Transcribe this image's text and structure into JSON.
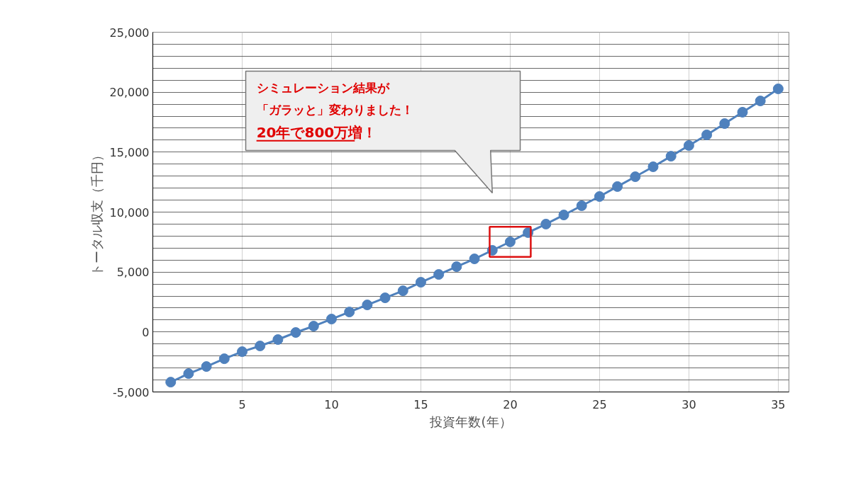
{
  "chart_data": {
    "type": "line",
    "xlabel": "投資年数(年）",
    "ylabel": "トータル収支（千円）",
    "x": [
      1,
      2,
      3,
      4,
      5,
      6,
      7,
      8,
      9,
      10,
      11,
      12,
      13,
      14,
      15,
      16,
      17,
      18,
      19,
      20,
      21,
      22,
      23,
      24,
      25,
      26,
      27,
      28,
      29,
      30,
      31,
      32,
      33,
      34,
      35
    ],
    "series": [
      {
        "color": "#4f81bd",
        "values": [
          -4180,
          -3470,
          -2880,
          -2230,
          -1640,
          -1160,
          -630,
          -40,
          490,
          1080,
          1670,
          2260,
          2850,
          3440,
          4150,
          4800,
          5450,
          6100,
          6810,
          7520,
          8290,
          9000,
          9760,
          10530,
          11300,
          12130,
          12950,
          13780,
          14660,
          15550,
          16440,
          17380,
          18330,
          19270,
          20280
        ]
      }
    ],
    "xlim": [
      0,
      35.6
    ],
    "xticks": [
      5,
      10,
      15,
      20,
      25,
      30,
      35
    ],
    "ylim": [
      -5000,
      25000
    ],
    "yticks": [
      {
        "value": -5000,
        "label": "-5,000"
      },
      {
        "value": -4000,
        "label": null
      },
      {
        "value": -3000,
        "label": null
      },
      {
        "value": -2000,
        "label": null
      },
      {
        "value": -1000,
        "label": null
      },
      0,
      {
        "value": 1000,
        "label": null
      },
      {
        "value": 2000,
        "label": null
      },
      {
        "value": 3000,
        "label": null
      },
      {
        "value": 4000,
        "label": null
      },
      {
        "value": 5000,
        "label": "5,000"
      },
      {
        "value": 6000,
        "label": null
      },
      {
        "value": 7000,
        "label": null
      },
      {
        "value": 8000,
        "label": null
      },
      {
        "value": 9000,
        "label": null
      },
      {
        "value": 10000,
        "label": "10,000"
      },
      {
        "value": 11000,
        "label": null
      },
      {
        "value": 12000,
        "label": null
      },
      {
        "value": 13000,
        "label": null
      },
      {
        "value": 14000,
        "label": null
      },
      {
        "value": 15000,
        "label": "15,000"
      },
      {
        "value": 16000,
        "label": null
      },
      {
        "value": 17000,
        "label": null
      },
      {
        "value": 18000,
        "label": null
      },
      {
        "value": 19000,
        "label": null
      },
      {
        "value": 20000,
        "label": "20,000"
      },
      {
        "value": 21000,
        "label": null
      },
      {
        "value": 22000,
        "label": null
      },
      {
        "value": 23000,
        "label": null
      },
      {
        "value": 24000,
        "label": null
      },
      {
        "value": 25000,
        "label": "25,000"
      }
    ],
    "grid": true,
    "marker": "circle",
    "line_style": "solid",
    "annotations": [
      "シミュレーション結果が",
      "「ガラッと」変わりました！",
      "20年で800万増！"
    ]
  }
}
